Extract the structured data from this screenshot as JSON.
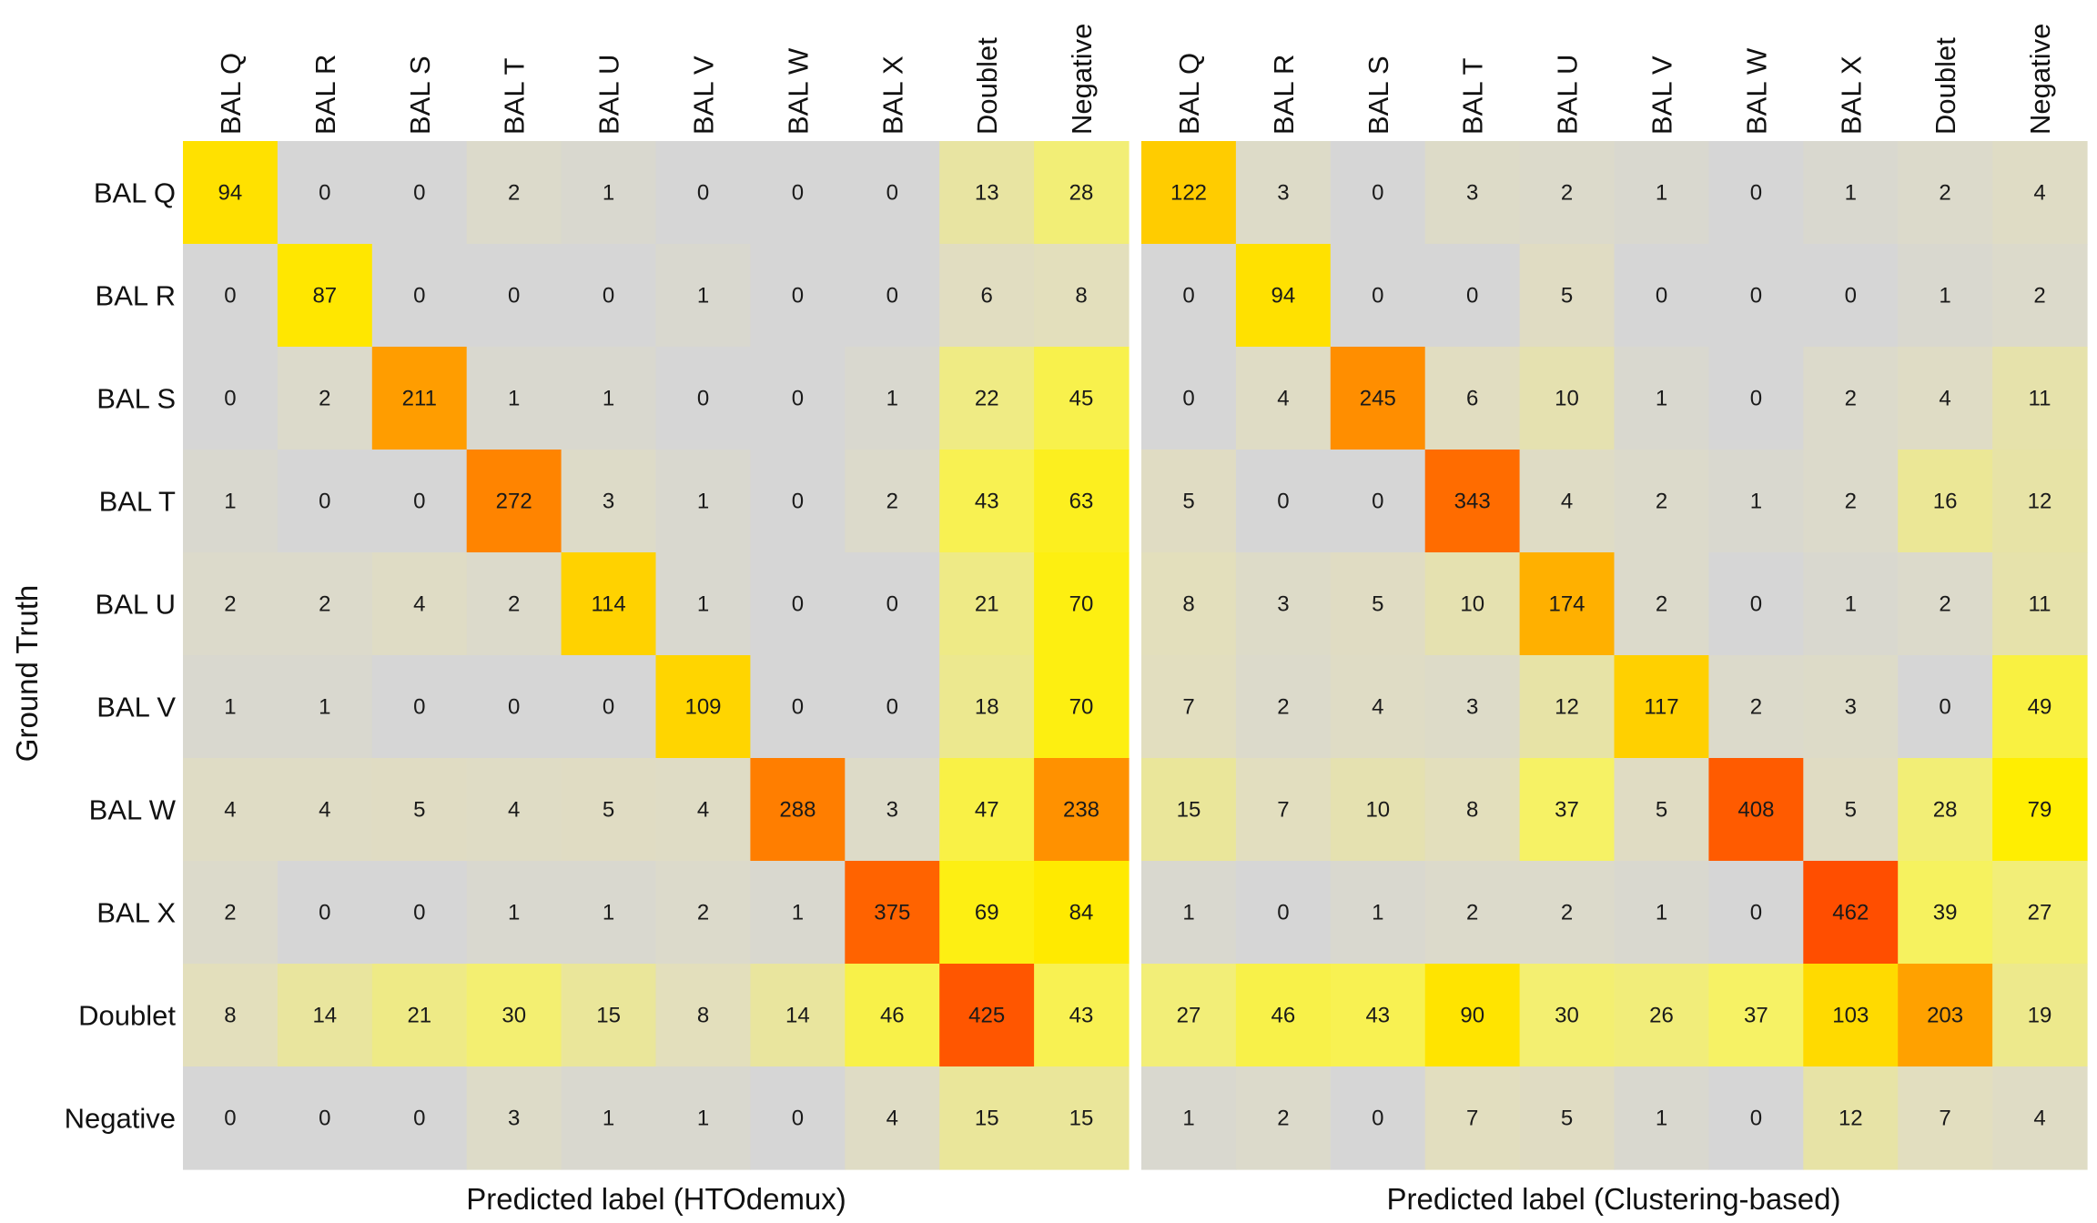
{
  "chart_data": [
    {
      "type": "heatmap",
      "xlabel": "Predicted label (HTOdemux)",
      "ylabel": "Ground Truth",
      "x_categories": [
        "BAL Q",
        "BAL R",
        "BAL S",
        "BAL T",
        "BAL U",
        "BAL V",
        "BAL W",
        "BAL X",
        "Doublet",
        "Negative"
      ],
      "y_categories": [
        "BAL Q",
        "BAL R",
        "BAL S",
        "BAL T",
        "BAL U",
        "BAL V",
        "BAL W",
        "BAL X",
        "Doublet",
        "Negative"
      ],
      "values": [
        [
          94,
          0,
          0,
          2,
          1,
          0,
          0,
          0,
          13,
          28
        ],
        [
          0,
          87,
          0,
          0,
          0,
          1,
          0,
          0,
          6,
          8
        ],
        [
          0,
          2,
          211,
          1,
          1,
          0,
          0,
          1,
          22,
          45
        ],
        [
          1,
          0,
          0,
          272,
          3,
          1,
          0,
          2,
          43,
          63
        ],
        [
          2,
          2,
          4,
          2,
          114,
          1,
          0,
          0,
          21,
          70
        ],
        [
          1,
          1,
          0,
          0,
          0,
          109,
          0,
          0,
          18,
          70
        ],
        [
          4,
          4,
          5,
          4,
          5,
          4,
          288,
          3,
          47,
          238
        ],
        [
          2,
          0,
          0,
          1,
          1,
          2,
          1,
          375,
          69,
          84
        ],
        [
          8,
          14,
          21,
          30,
          15,
          8,
          14,
          46,
          425,
          43
        ],
        [
          0,
          0,
          0,
          3,
          1,
          1,
          0,
          4,
          15,
          15
        ]
      ]
    },
    {
      "type": "heatmap",
      "xlabel": "Predicted label (Clustering-based)",
      "ylabel": "",
      "x_categories": [
        "BAL Q",
        "BAL R",
        "BAL S",
        "BAL T",
        "BAL U",
        "BAL V",
        "BAL W",
        "BAL X",
        "Doublet",
        "Negative"
      ],
      "y_categories": [
        "BAL Q",
        "BAL R",
        "BAL S",
        "BAL T",
        "BAL U",
        "BAL V",
        "BAL W",
        "BAL X",
        "Doublet",
        "Negative"
      ],
      "values": [
        [
          122,
          3,
          0,
          3,
          2,
          1,
          0,
          1,
          2,
          4
        ],
        [
          0,
          94,
          0,
          0,
          5,
          0,
          0,
          0,
          1,
          2
        ],
        [
          0,
          4,
          245,
          6,
          10,
          1,
          0,
          2,
          4,
          11
        ],
        [
          5,
          0,
          0,
          343,
          4,
          2,
          1,
          2,
          16,
          12
        ],
        [
          8,
          3,
          5,
          10,
          174,
          2,
          0,
          1,
          2,
          11
        ],
        [
          7,
          2,
          4,
          3,
          12,
          117,
          2,
          3,
          0,
          49
        ],
        [
          15,
          7,
          10,
          8,
          37,
          5,
          408,
          5,
          28,
          79
        ],
        [
          1,
          0,
          1,
          2,
          2,
          1,
          0,
          462,
          39,
          27
        ],
        [
          27,
          46,
          43,
          90,
          30,
          26,
          37,
          103,
          203,
          19
        ],
        [
          1,
          2,
          0,
          7,
          5,
          1,
          0,
          12,
          7,
          4
        ]
      ]
    }
  ]
}
